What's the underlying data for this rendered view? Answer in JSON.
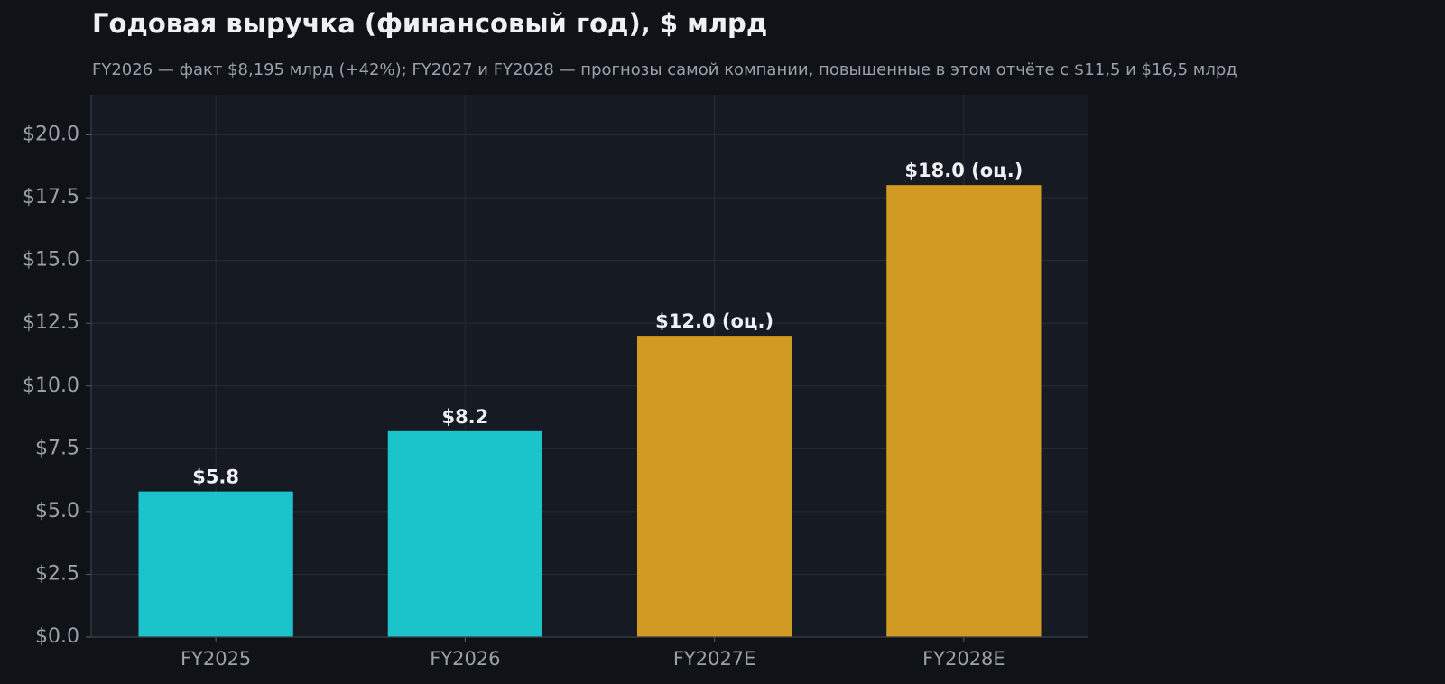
{
  "chart_data": {
    "type": "bar",
    "title": "Годовая выручка (финансовый год), $ млрд",
    "subtitle": "FY2026 — факт $8,195 млрд (+42%); FY2027 и FY2028 — прогнозы самой компании, повышенные в этом отчёте с $11,5 и $16,5 млрд",
    "categories": [
      "FY2025",
      "FY2026",
      "FY2027E",
      "FY2028E"
    ],
    "values": [
      5.8,
      8.2,
      12.0,
      18.0
    ],
    "value_labels": [
      "$5.8",
      "$8.2",
      "$12.0 (оц.)",
      "$18.0 (оц.)"
    ],
    "colors": [
      "#1bc4cb",
      "#1bc4cb",
      "#d19a22",
      "#d19a22"
    ],
    "ylim": [
      0,
      21.6
    ],
    "yticks": [
      {
        "value": 0,
        "label": "$0.0"
      },
      {
        "value": 2.5,
        "label": "$2.5"
      },
      {
        "value": 5,
        "label": "$5.0"
      },
      {
        "value": 7.5,
        "label": "$7.5"
      },
      {
        "value": 10,
        "label": "$10.0"
      },
      {
        "value": 12.5,
        "label": "$12.5"
      },
      {
        "value": 15,
        "label": "$15.0"
      },
      {
        "value": 17.5,
        "label": "$17.5"
      },
      {
        "value": 20,
        "label": "$20.0"
      }
    ],
    "grid": true
  }
}
